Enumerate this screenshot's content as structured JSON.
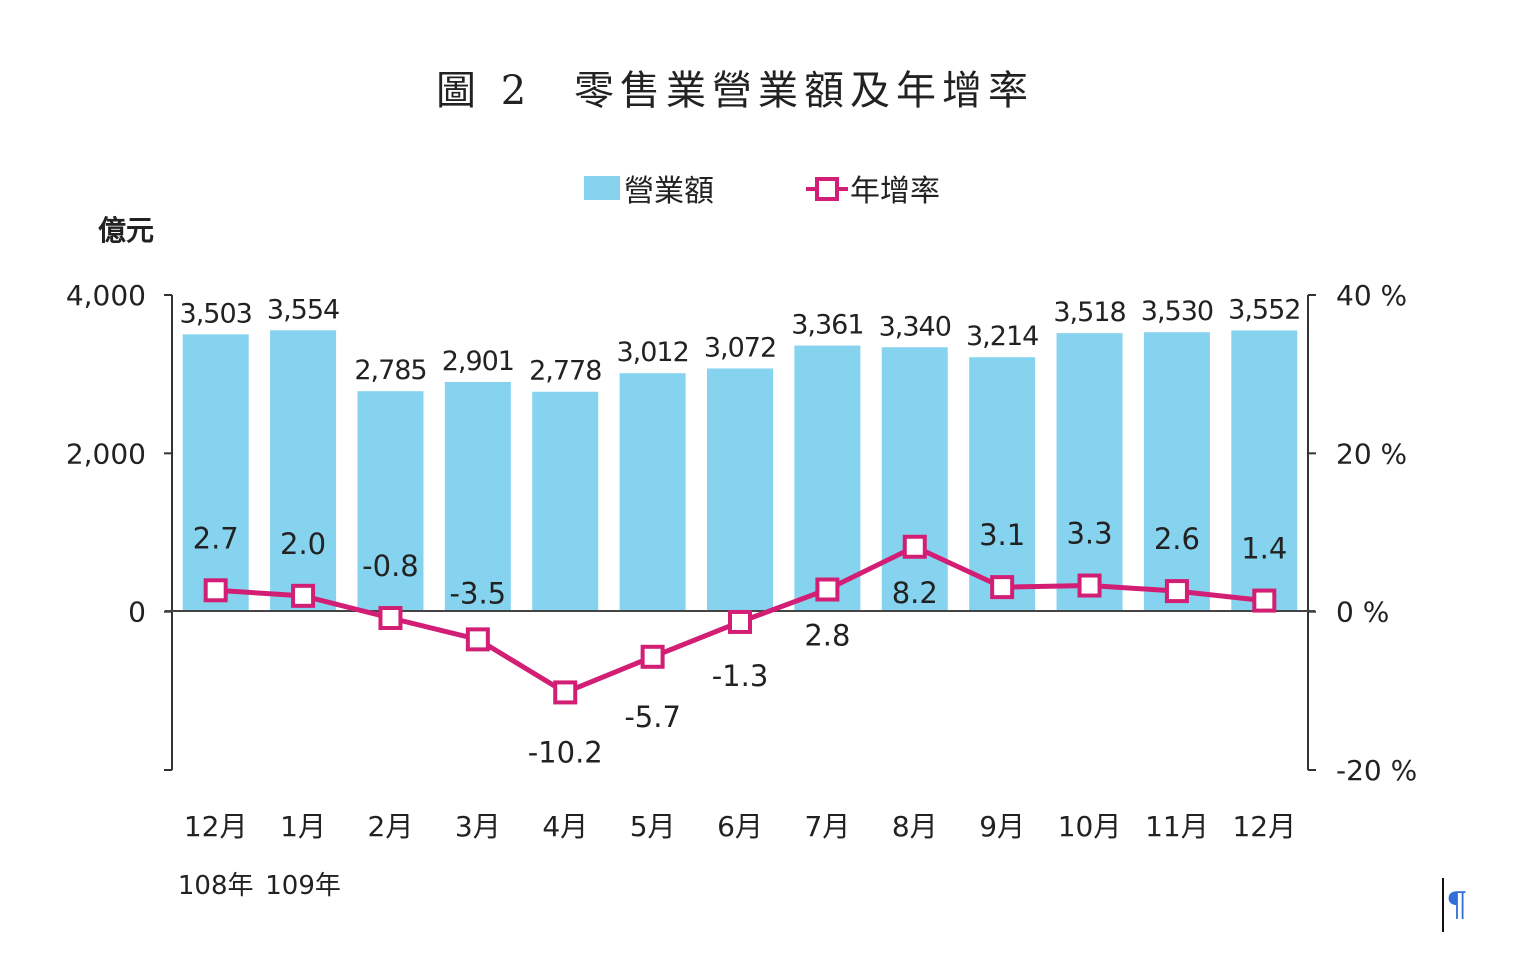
{
  "chart_data": {
    "type": "bar+line",
    "title_prefix": "圖 2",
    "title": "零售業營業額及年增率",
    "left_axis_unit": "億元",
    "legend": [
      {
        "name": "營業額",
        "kind": "bar",
        "color": "#86d3ef"
      },
      {
        "name": "年增率",
        "kind": "line",
        "color": "#d21e74"
      }
    ],
    "categories": [
      "12月",
      "1月",
      "2月",
      "3月",
      "4月",
      "5月",
      "6月",
      "7月",
      "8月",
      "9月",
      "10月",
      "11月",
      "12月"
    ],
    "year_labels": [
      {
        "index": 0,
        "label": "108年"
      },
      {
        "index": 1,
        "label": "109年"
      }
    ],
    "series": [
      {
        "name": "營業額",
        "type": "bar",
        "axis": "left",
        "color": "#86d3ef",
        "values": [
          3503,
          3554,
          2785,
          2901,
          2778,
          3012,
          3072,
          3361,
          3340,
          3214,
          3518,
          3530,
          3552
        ],
        "labels": [
          "3,503",
          "3,554",
          "2,785",
          "2,901",
          "2,778",
          "3,012",
          "3,072",
          "3,361",
          "3,340",
          "3,214",
          "3,518",
          "3,530",
          "3,552"
        ]
      },
      {
        "name": "年增率",
        "type": "line",
        "axis": "right",
        "color": "#d21e74",
        "values": [
          2.7,
          2.0,
          -0.8,
          -3.5,
          -10.2,
          -5.7,
          -1.3,
          2.8,
          8.2,
          3.1,
          3.3,
          2.6,
          1.4
        ],
        "labels": [
          "2.7",
          "2.0",
          "-0.8",
          "-3.5",
          "-10.2",
          "-5.7",
          "-1.3",
          "2.8",
          "8.2",
          "3.1",
          "3.3",
          "2.6",
          "1.4"
        ]
      }
    ],
    "left_axis": {
      "min": -2000,
      "max": 4000,
      "ticks": [
        4000,
        2000,
        0
      ],
      "tick_labels": [
        "4,000",
        "2,000",
        "0"
      ]
    },
    "right_axis": {
      "min": -20,
      "max": 40,
      "ticks": [
        40,
        20,
        0,
        -20
      ],
      "tick_labels": [
        "40 %",
        "20 %",
        "0 %",
        "-20 %"
      ]
    }
  },
  "doc": {
    "pilcrow": "¶"
  }
}
